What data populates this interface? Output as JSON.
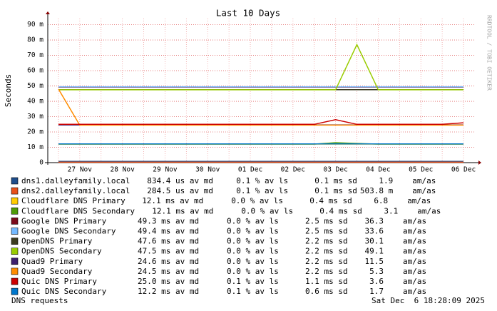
{
  "chart_data": {
    "type": "line",
    "title": "Last 10 Days",
    "y_label": "Seconds",
    "watermark": "RRDTOOL / TOBI OETIKER",
    "footer_left": "DNS requests",
    "footer_right": "Sat Dec  6 18:28:09 2025",
    "categories": [
      null,
      "27 Nov",
      null,
      "28 Nov",
      null,
      "29 Nov",
      null,
      "30 Nov",
      null,
      "01 Dec",
      null,
      "02 Dec",
      null,
      "03 Dec",
      null,
      "04 Dec",
      null,
      "05 Dec",
      null,
      "06 Dec"
    ],
    "ylim": [
      0,
      0.094
    ],
    "yticks": [
      {
        "value": 0,
        "label": "0"
      },
      {
        "value": 0.01,
        "label": "10 m"
      },
      {
        "value": 0.02,
        "label": "20 m"
      },
      {
        "value": 0.03,
        "label": "30 m"
      },
      {
        "value": 0.04,
        "label": "40 m"
      },
      {
        "value": 0.05,
        "label": "50 m"
      },
      {
        "value": 0.06,
        "label": "60 m"
      },
      {
        "value": 0.07,
        "label": "70 m"
      },
      {
        "value": 0.08,
        "label": "80 m"
      },
      {
        "value": 0.09,
        "label": "90 m"
      }
    ],
    "grid": true,
    "series": [
      {
        "name": "dns1.dalleyfamily.local",
        "color": "#1f4e8c",
        "stats": [
          "834.4 us av md",
          "0.1 % av ls",
          "0.1 ms sd",
          "1.9",
          "am/as"
        ],
        "values": [
          0.0008,
          0.0008,
          0.0008,
          0.0008,
          0.0008,
          0.0008,
          0.0008,
          0.0008,
          0.0008,
          0.0008,
          0.0008,
          0.0008,
          0.0008,
          0.0008,
          0.0008,
          0.0008,
          0.0008,
          0.0008,
          0.0008,
          0.0008
        ]
      },
      {
        "name": "dns2.dalleyfamily.local",
        "color": "#e8501a",
        "stats": [
          "284.5 us av md",
          "0.1 % av ls",
          "0.1 ms sd",
          "503.8 m",
          "am/as"
        ],
        "values": [
          0.0003,
          0.0003,
          0.0003,
          0.0003,
          0.0003,
          0.0003,
          0.0003,
          0.0003,
          0.0003,
          0.0003,
          0.0003,
          0.0003,
          0.0003,
          0.0003,
          0.0003,
          0.0003,
          0.0003,
          0.0003,
          0.0003,
          0.0003
        ]
      },
      {
        "name": "Cloudflare DNS Primary",
        "color": "#ffcc00",
        "stats": [
          "12.1 ms av md",
          "0.0 % av ls",
          "0.4 ms sd",
          "6.8",
          "am/as"
        ],
        "values": [
          0.0121,
          0.0121,
          0.0121,
          0.0121,
          0.0121,
          0.0121,
          0.0121,
          0.0121,
          0.0121,
          0.0121,
          0.0121,
          0.0121,
          0.0121,
          0.0121,
          0.0121,
          0.0121,
          0.0121,
          0.0121,
          0.0121,
          0.0121
        ]
      },
      {
        "name": "Cloudflare DNS Secondary",
        "color": "#4e9a06",
        "stats": [
          "12.1 ms av md",
          "0.0 % av ls",
          "0.4 ms sd",
          "3.1",
          "am/as"
        ],
        "values": [
          0.0121,
          0.0121,
          0.0121,
          0.0121,
          0.0121,
          0.0121,
          0.0121,
          0.0121,
          0.0121,
          0.0121,
          0.0121,
          0.0121,
          0.0121,
          0.013,
          0.0125,
          0.0121,
          0.0121,
          0.0121,
          0.0121,
          0.0121
        ]
      },
      {
        "name": "Google DNS Primary",
        "color": "#7a0a1a",
        "stats": [
          "49.3 ms av md",
          "0.0 % av ls",
          "2.5 ms sd",
          "36.3",
          "am/as"
        ],
        "values": [
          0.0493,
          0.0493,
          0.0493,
          0.0493,
          0.0493,
          0.0493,
          0.0493,
          0.0493,
          0.0493,
          0.0493,
          0.0493,
          0.0493,
          0.0493,
          0.0493,
          0.0493,
          0.0493,
          0.0493,
          0.0493,
          0.0493,
          0.0493
        ]
      },
      {
        "name": "Google DNS Secondary",
        "color": "#74b9ff",
        "stats": [
          "49.4 ms av md",
          "0.0 % av ls",
          "2.5 ms sd",
          "33.6",
          "am/as"
        ],
        "values": [
          0.0494,
          0.0494,
          0.0494,
          0.0494,
          0.0494,
          0.0494,
          0.0494,
          0.0494,
          0.0494,
          0.0494,
          0.0494,
          0.0494,
          0.0494,
          0.0494,
          0.0494,
          0.0494,
          0.0494,
          0.0494,
          0.0494,
          0.0494
        ]
      },
      {
        "name": "OpenDNS Primary",
        "color": "#3b3b1f",
        "stats": [
          "47.6 ms av md",
          "0.0 % av ls",
          "2.2 ms sd",
          "30.1",
          "am/as"
        ],
        "values": [
          0.0476,
          0.0476,
          0.0476,
          0.0476,
          0.0476,
          0.0476,
          0.0476,
          0.0476,
          0.0476,
          0.0476,
          0.0476,
          0.0476,
          0.0476,
          0.0476,
          0.0476,
          0.0476,
          0.0476,
          0.0476,
          0.0476,
          0.0476
        ]
      },
      {
        "name": "OpenDNS Secondary",
        "color": "#99cc00",
        "stats": [
          "47.5 ms av md",
          "0.0 % av ls",
          "2.2 ms sd",
          "49.1",
          "am/as"
        ],
        "values": [
          0.0475,
          0.0475,
          0.0475,
          0.0475,
          0.0475,
          0.0475,
          0.0475,
          0.0475,
          0.0475,
          0.0475,
          0.0475,
          0.0475,
          0.0475,
          0.0475,
          0.077,
          0.0475,
          0.0475,
          0.0475,
          0.0475,
          0.0475
        ]
      },
      {
        "name": "Quad9 Primary",
        "color": "#3d1f6e",
        "stats": [
          "24.6 ms av md",
          "0.0 % av ls",
          "2.2 ms sd",
          "11.5",
          "am/as"
        ],
        "values": [
          0.0246,
          0.0246,
          0.0246,
          0.0246,
          0.0246,
          0.0246,
          0.0246,
          0.0246,
          0.0246,
          0.0246,
          0.0246,
          0.0246,
          0.0246,
          0.0246,
          0.0246,
          0.0246,
          0.0246,
          0.0246,
          0.0246,
          0.0246
        ]
      },
      {
        "name": "Quad9 Secondary",
        "color": "#ff8c00",
        "stats": [
          "24.5 ms av md",
          "0.0 % av ls",
          "2.2 ms sd",
          "5.3",
          "am/as"
        ],
        "values": [
          0.048,
          0.0245,
          0.0245,
          0.0245,
          0.0245,
          0.0245,
          0.0245,
          0.0245,
          0.0245,
          0.0245,
          0.0245,
          0.0245,
          0.0245,
          0.0245,
          0.0245,
          0.0245,
          0.0245,
          0.0245,
          0.0245,
          0.0245
        ]
      },
      {
        "name": "Quic DNS Primary",
        "color": "#cc0000",
        "stats": [
          "25.0 ms av md",
          "0.1 % av ls",
          "1.1 ms sd",
          "3.6",
          "am/as"
        ],
        "values": [
          0.025,
          0.025,
          0.025,
          0.025,
          0.025,
          0.025,
          0.025,
          0.025,
          0.025,
          0.025,
          0.025,
          0.025,
          0.025,
          0.028,
          0.025,
          0.025,
          0.025,
          0.025,
          0.025,
          0.026
        ]
      },
      {
        "name": "Quic DNS Secondary",
        "color": "#0077cc",
        "stats": [
          "12.2 ms av md",
          "0.1 % av ls",
          "0.6 ms sd",
          "1.7",
          "am/as"
        ],
        "values": [
          0.0122,
          0.0122,
          0.0122,
          0.0122,
          0.0122,
          0.0122,
          0.0122,
          0.0122,
          0.0122,
          0.0122,
          0.0122,
          0.0122,
          0.0122,
          0.0122,
          0.0122,
          0.0122,
          0.0122,
          0.0122,
          0.0122,
          0.0122
        ]
      }
    ]
  }
}
